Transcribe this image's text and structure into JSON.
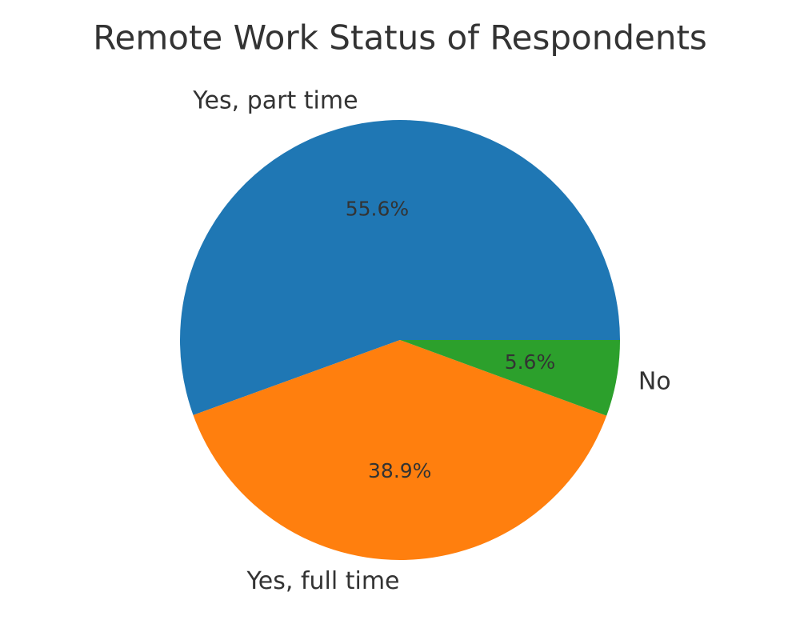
{
  "chart_data": {
    "type": "pie",
    "title": "Remote Work Status of Respondents",
    "categories": [
      "Yes, part time",
      "Yes, full time",
      "No"
    ],
    "values": [
      55.6,
      38.9,
      5.6
    ],
    "value_labels": [
      "55.6%",
      "38.9%",
      "5.6%"
    ],
    "colors": [
      "#1f77b4",
      "#ff7f0e",
      "#2ca02c"
    ]
  }
}
